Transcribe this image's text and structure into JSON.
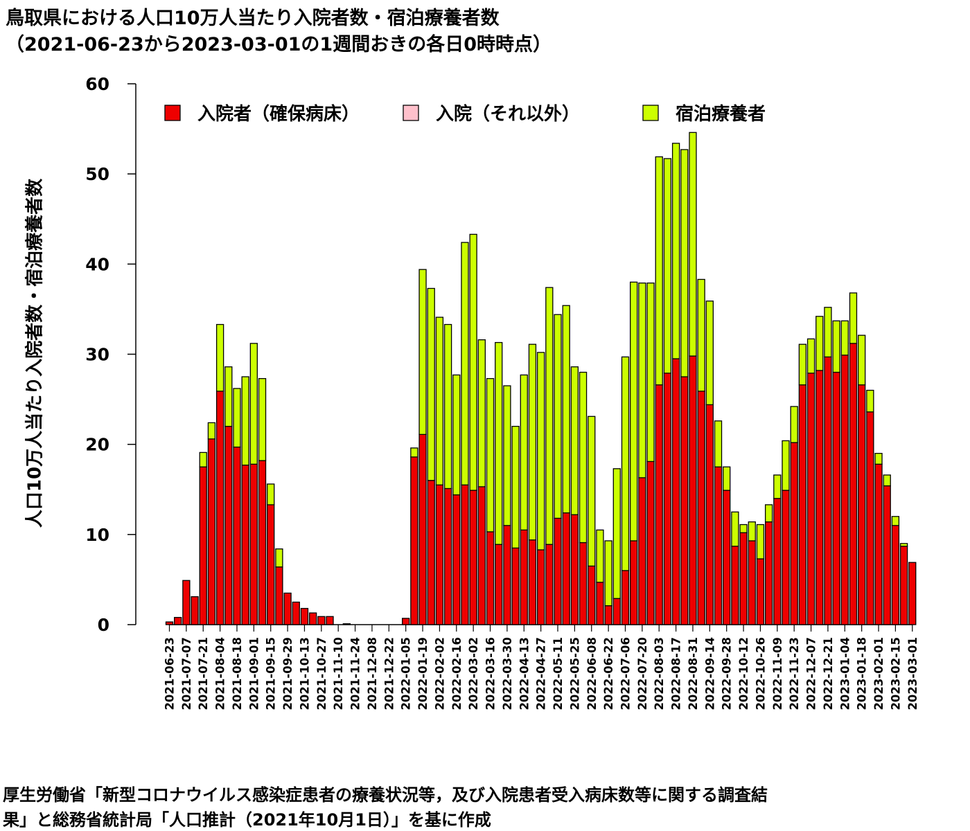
{
  "title_line1": "鳥取県における人口10万人当たり入院者数・宿泊療養者数",
  "title_line2": "（2021-06-23から2023-03-01の1週間おきの各日0時時点）",
  "source_line1": "厚生労働省「新型コロナウイルス感染症患者の療養状況等，及び入院患者受入病床数等に関する調査結",
  "source_line2": "果」と総務省統計局「人口推計（2021年10月1日）」を基に作成",
  "chart_data": {
    "type": "bar",
    "stacked": true,
    "ylabel": "人口10万人当たり入院者数・宿泊療養者数",
    "xlabel": "",
    "ylim": [
      0,
      60
    ],
    "yticks": [
      0,
      10,
      20,
      30,
      40,
      50,
      60
    ],
    "grid": false,
    "legend_position": "top",
    "categories": [
      "2021-06-23",
      "2021-06-30",
      "2021-07-07",
      "2021-07-14",
      "2021-07-21",
      "2021-07-28",
      "2021-08-04",
      "2021-08-11",
      "2021-08-18",
      "2021-08-25",
      "2021-09-01",
      "2021-09-08",
      "2021-09-15",
      "2021-09-22",
      "2021-09-29",
      "2021-10-06",
      "2021-10-13",
      "2021-10-20",
      "2021-10-27",
      "2021-11-03",
      "2021-11-10",
      "2021-11-17",
      "2021-11-24",
      "2021-12-01",
      "2021-12-08",
      "2021-12-15",
      "2021-12-22",
      "2021-12-29",
      "2022-01-05",
      "2022-01-12",
      "2022-01-19",
      "2022-01-26",
      "2022-02-02",
      "2022-02-09",
      "2022-02-16",
      "2022-02-23",
      "2022-03-02",
      "2022-03-09",
      "2022-03-16",
      "2022-03-23",
      "2022-03-30",
      "2022-04-06",
      "2022-04-13",
      "2022-04-20",
      "2022-04-27",
      "2022-05-04",
      "2022-05-11",
      "2022-05-18",
      "2022-05-25",
      "2022-06-01",
      "2022-06-08",
      "2022-06-15",
      "2022-06-22",
      "2022-06-29",
      "2022-07-06",
      "2022-07-13",
      "2022-07-20",
      "2022-07-27",
      "2022-08-03",
      "2022-08-10",
      "2022-08-17",
      "2022-08-24",
      "2022-08-31",
      "2022-09-07",
      "2022-09-14",
      "2022-09-21",
      "2022-09-28",
      "2022-10-05",
      "2022-10-12",
      "2022-10-19",
      "2022-10-26",
      "2022-11-02",
      "2022-11-09",
      "2022-11-16",
      "2022-11-23",
      "2022-11-30",
      "2022-12-07",
      "2022-12-14",
      "2022-12-21",
      "2022-12-28",
      "2023-01-04",
      "2023-01-11",
      "2023-01-18",
      "2023-01-25",
      "2023-02-01",
      "2023-02-08",
      "2023-02-15",
      "2023-02-22",
      "2023-03-01"
    ],
    "tick_labels": [
      "2021-06-23",
      "2021-07-07",
      "2021-07-21",
      "2021-08-04",
      "2021-08-18",
      "2021-09-01",
      "2021-09-15",
      "2021-09-29",
      "2021-10-13",
      "2021-10-27",
      "2021-11-10",
      "2021-11-24",
      "2021-12-08",
      "2021-12-22",
      "2022-01-05",
      "2022-01-19",
      "2022-02-02",
      "2022-02-16",
      "2022-03-02",
      "2022-03-16",
      "2022-03-30",
      "2022-04-13",
      "2022-04-27",
      "2022-05-11",
      "2022-05-25",
      "2022-06-08",
      "2022-06-22",
      "2022-07-06",
      "2022-07-20",
      "2022-08-03",
      "2022-08-17",
      "2022-08-31",
      "2022-09-14",
      "2022-09-28",
      "2022-10-12",
      "2022-10-26",
      "2022-11-09",
      "2022-11-23",
      "2022-12-07",
      "2022-12-21",
      "2023-01-04",
      "2023-01-18",
      "2023-02-01",
      "2023-02-15",
      "2023-03-01"
    ],
    "series": [
      {
        "name": "入院者（確保病床）",
        "color": "#ee0000",
        "values": [
          0.3,
          0.8,
          4.9,
          3.1,
          17.5,
          20.6,
          25.9,
          22.0,
          19.7,
          17.7,
          17.8,
          18.2,
          13.3,
          6.4,
          3.5,
          2.5,
          1.8,
          1.3,
          0.9,
          0.9,
          0.0,
          0.1,
          0.0,
          0.0,
          0.0,
          0.0,
          0.0,
          0.0,
          0.7,
          18.6,
          21.1,
          16.0,
          15.5,
          15.1,
          14.4,
          15.5,
          14.9,
          15.3,
          10.3,
          8.9,
          11.0,
          8.5,
          10.5,
          9.4,
          8.3,
          8.9,
          11.8,
          12.4,
          12.2,
          9.1,
          6.5,
          4.7,
          2.1,
          2.9,
          6.0,
          9.3,
          16.3,
          18.1,
          26.6,
          27.9,
          29.5,
          27.5,
          29.8,
          25.9,
          24.4,
          17.5,
          14.9,
          8.7,
          10.2,
          9.3,
          7.3,
          11.4,
          14.0,
          14.9,
          20.2,
          26.6,
          27.9,
          28.2,
          29.7,
          28.0,
          29.9,
          31.2,
          26.6,
          23.6,
          17.8,
          15.4,
          11.0,
          8.7,
          6.9
        ]
      },
      {
        "name": "入院（それ以外）",
        "color": "#ffc0cb",
        "values": [
          0,
          0,
          0,
          0,
          0,
          0,
          0,
          0,
          0,
          0,
          0,
          0,
          0,
          0,
          0,
          0,
          0,
          0,
          0,
          0,
          0,
          0,
          0,
          0,
          0,
          0,
          0,
          0,
          0,
          0,
          0,
          0,
          0,
          0,
          0,
          0,
          0,
          0,
          0,
          0,
          0,
          0,
          0,
          0,
          0,
          0,
          0,
          0,
          0,
          0,
          0,
          0,
          0,
          0,
          0,
          0,
          0,
          0,
          0,
          0,
          0,
          0,
          0,
          0,
          0,
          0,
          0,
          0,
          0,
          0,
          0,
          0,
          0,
          0,
          0,
          0,
          0,
          0,
          0,
          0,
          0,
          0,
          0,
          0,
          0,
          0,
          0,
          0,
          0
        ]
      },
      {
        "name": "宿泊療養者",
        "color": "#ccff00",
        "values": [
          0,
          0,
          0,
          0,
          1.6,
          1.8,
          7.4,
          6.6,
          6.5,
          9.8,
          13.4,
          9.1,
          2.3,
          2.0,
          0,
          0,
          0,
          0,
          0,
          0,
          0,
          0,
          0,
          0,
          0,
          0,
          0,
          0,
          0,
          1.0,
          18.3,
          21.3,
          18.6,
          18.2,
          13.3,
          26.9,
          28.4,
          16.3,
          17.0,
          22.4,
          15.5,
          13.5,
          17.2,
          21.7,
          21.9,
          28.5,
          22.6,
          23.0,
          16.4,
          18.9,
          16.6,
          5.8,
          7.2,
          14.4,
          23.7,
          28.7,
          21.6,
          19.8,
          25.3,
          23.8,
          23.9,
          25.2,
          24.8,
          12.4,
          11.5,
          5.1,
          2.6,
          3.8,
          0.9,
          2.1,
          3.8,
          1.9,
          2.6,
          5.5,
          4.0,
          4.5,
          3.8,
          6.0,
          5.5,
          5.7,
          3.8,
          5.6,
          5.5,
          2.4,
          1.2,
          1.2,
          1.0,
          0.3,
          0.0
        ]
      }
    ]
  }
}
